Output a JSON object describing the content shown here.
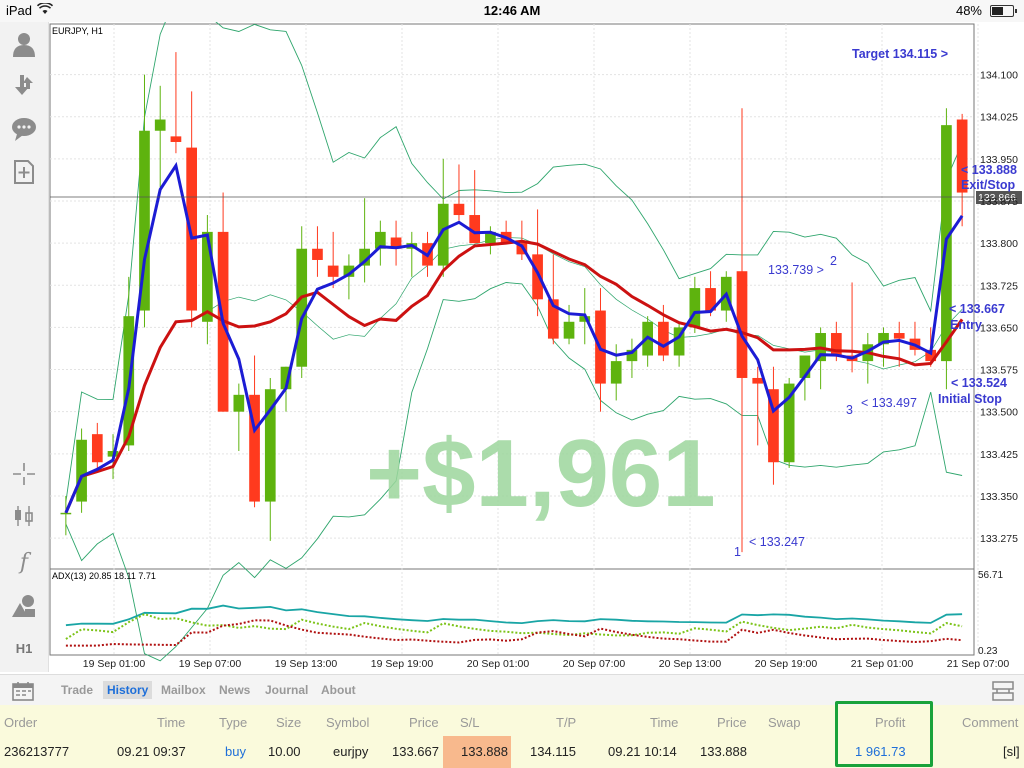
{
  "status_bar": {
    "device": "iPad",
    "time": "12:46 AM",
    "battery": "48%"
  },
  "toolbar": {
    "icons": [
      "account-icon",
      "trade-arrows-icon",
      "chat-icon",
      "new-order-icon",
      "crosshair-icon",
      "candlestick-icon",
      "function-icon",
      "objects-icon"
    ],
    "timeframe": "H1"
  },
  "chart": {
    "symbol_label": "EURJPY, H1",
    "current_price": "133.866",
    "overlay_text": "+$1,961",
    "annotations": {
      "target": "Target 134.115 >",
      "exit_price": "< 133.888",
      "exit_label": "Exit/Stop",
      "entry_price": "< 133.667",
      "entry_label": "Entry",
      "initial_price": "< 133.524",
      "initial_label": "Initial Stop",
      "p1_num": "1",
      "p1_label": "< 133.247",
      "p2_num": "2",
      "p2_label": "133.739 >",
      "p3_num": "3",
      "p3_label": "< 133.497"
    },
    "indicator_label": "ADX(13) 20.85 18.11 7.71",
    "indicator_max": "56.71",
    "indicator_min": "0.23",
    "colors": {
      "bull": "#5eb30e",
      "bear": "#ff3a1e",
      "ma_fast": "#1c1cd4",
      "ma_slow": "#cc1111",
      "band": "#2ea56c",
      "annotation": "#3a3ad0",
      "overlay": "#9cd69c"
    }
  },
  "chart_data": {
    "type": "candlestick",
    "title": "EURJPY, H1",
    "y_ticks": [
      "134.100",
      "134.025",
      "133.950",
      "133.875",
      "133.800",
      "133.725",
      "133.650",
      "133.575",
      "133.500",
      "133.425",
      "133.350",
      "133.275"
    ],
    "x_ticks": [
      "19 Sep 01:00",
      "19 Sep 07:00",
      "19 Sep 13:00",
      "19 Sep 19:00",
      "20 Sep 01:00",
      "20 Sep 07:00",
      "20 Sep 13:00",
      "20 Sep 19:00",
      "21 Sep 01:00",
      "21 Sep 07:00"
    ],
    "ylim": [
      133.22,
      134.19
    ],
    "candles": [
      {
        "o": 133.32,
        "h": 133.35,
        "l": 133.28,
        "c": 133.32
      },
      {
        "o": 133.34,
        "h": 133.47,
        "l": 133.32,
        "c": 133.45
      },
      {
        "o": 133.46,
        "h": 133.48,
        "l": 133.4,
        "c": 133.41
      },
      {
        "o": 133.42,
        "h": 133.46,
        "l": 133.38,
        "c": 133.43
      },
      {
        "o": 133.44,
        "h": 133.74,
        "l": 133.43,
        "c": 133.67
      },
      {
        "o": 133.68,
        "h": 134.1,
        "l": 133.65,
        "c": 134.0
      },
      {
        "o": 134.0,
        "h": 134.08,
        "l": 133.9,
        "c": 134.02
      },
      {
        "o": 133.99,
        "h": 134.14,
        "l": 133.96,
        "c": 133.98
      },
      {
        "o": 133.97,
        "h": 134.07,
        "l": 133.65,
        "c": 133.68
      },
      {
        "o": 133.66,
        "h": 133.85,
        "l": 133.62,
        "c": 133.82
      },
      {
        "o": 133.82,
        "h": 133.89,
        "l": 133.5,
        "c": 133.5
      },
      {
        "o": 133.5,
        "h": 133.55,
        "l": 133.43,
        "c": 133.53
      },
      {
        "o": 133.53,
        "h": 133.6,
        "l": 133.33,
        "c": 133.34
      },
      {
        "o": 133.34,
        "h": 133.56,
        "l": 133.27,
        "c": 133.54
      },
      {
        "o": 133.54,
        "h": 133.58,
        "l": 133.5,
        "c": 133.58
      },
      {
        "o": 133.58,
        "h": 133.83,
        "l": 133.56,
        "c": 133.79
      },
      {
        "o": 133.79,
        "h": 133.83,
        "l": 133.74,
        "c": 133.77
      },
      {
        "o": 133.76,
        "h": 133.82,
        "l": 133.72,
        "c": 133.74
      },
      {
        "o": 133.74,
        "h": 133.78,
        "l": 133.7,
        "c": 133.76
      },
      {
        "o": 133.76,
        "h": 133.88,
        "l": 133.73,
        "c": 133.79
      },
      {
        "o": 133.79,
        "h": 133.84,
        "l": 133.76,
        "c": 133.82
      },
      {
        "o": 133.81,
        "h": 133.84,
        "l": 133.76,
        "c": 133.79
      },
      {
        "o": 133.79,
        "h": 133.82,
        "l": 133.74,
        "c": 133.8
      },
      {
        "o": 133.8,
        "h": 133.82,
        "l": 133.74,
        "c": 133.76
      },
      {
        "o": 133.76,
        "h": 133.95,
        "l": 133.74,
        "c": 133.87
      },
      {
        "o": 133.87,
        "h": 133.94,
        "l": 133.84,
        "c": 133.85
      },
      {
        "o": 133.85,
        "h": 133.93,
        "l": 133.8,
        "c": 133.8
      },
      {
        "o": 133.8,
        "h": 133.83,
        "l": 133.78,
        "c": 133.82
      },
      {
        "o": 133.82,
        "h": 133.84,
        "l": 133.8,
        "c": 133.8
      },
      {
        "o": 133.8,
        "h": 133.84,
        "l": 133.77,
        "c": 133.78
      },
      {
        "o": 133.78,
        "h": 133.86,
        "l": 133.67,
        "c": 133.7
      },
      {
        "o": 133.7,
        "h": 133.78,
        "l": 133.62,
        "c": 133.63
      },
      {
        "o": 133.63,
        "h": 133.69,
        "l": 133.62,
        "c": 133.66
      },
      {
        "o": 133.66,
        "h": 133.72,
        "l": 133.62,
        "c": 133.67
      },
      {
        "o": 133.68,
        "h": 133.72,
        "l": 133.5,
        "c": 133.55
      },
      {
        "o": 133.55,
        "h": 133.62,
        "l": 133.52,
        "c": 133.59
      },
      {
        "o": 133.59,
        "h": 133.63,
        "l": 133.56,
        "c": 133.61
      },
      {
        "o": 133.6,
        "h": 133.67,
        "l": 133.58,
        "c": 133.66
      },
      {
        "o": 133.66,
        "h": 133.69,
        "l": 133.59,
        "c": 133.6
      },
      {
        "o": 133.6,
        "h": 133.66,
        "l": 133.58,
        "c": 133.65
      },
      {
        "o": 133.65,
        "h": 133.74,
        "l": 133.64,
        "c": 133.72
      },
      {
        "o": 133.72,
        "h": 133.75,
        "l": 133.67,
        "c": 133.68
      },
      {
        "o": 133.68,
        "h": 133.75,
        "l": 133.66,
        "c": 133.74
      },
      {
        "o": 133.75,
        "h": 134.04,
        "l": 133.25,
        "c": 133.56
      },
      {
        "o": 133.56,
        "h": 133.58,
        "l": 133.44,
        "c": 133.55
      },
      {
        "o": 133.54,
        "h": 133.58,
        "l": 133.37,
        "c": 133.41
      },
      {
        "o": 133.41,
        "h": 133.56,
        "l": 133.4,
        "c": 133.55
      },
      {
        "o": 133.56,
        "h": 133.6,
        "l": 133.52,
        "c": 133.6
      },
      {
        "o": 133.59,
        "h": 133.65,
        "l": 133.54,
        "c": 133.64
      },
      {
        "o": 133.64,
        "h": 133.66,
        "l": 133.59,
        "c": 133.6
      },
      {
        "o": 133.6,
        "h": 133.73,
        "l": 133.57,
        "c": 133.59
      },
      {
        "o": 133.59,
        "h": 133.64,
        "l": 133.55,
        "c": 133.62
      },
      {
        "o": 133.62,
        "h": 133.65,
        "l": 133.58,
        "c": 133.64
      },
      {
        "o": 133.64,
        "h": 133.66,
        "l": 133.58,
        "c": 133.63
      },
      {
        "o": 133.63,
        "h": 133.66,
        "l": 133.6,
        "c": 133.61
      },
      {
        "o": 133.61,
        "h": 133.65,
        "l": 133.58,
        "c": 133.59
      },
      {
        "o": 133.59,
        "h": 134.04,
        "l": 133.54,
        "c": 134.01
      },
      {
        "o": 134.02,
        "h": 134.03,
        "l": 133.83,
        "c": 133.89
      }
    ]
  },
  "tabs": [
    "Trade",
    "History",
    "Mailbox",
    "News",
    "Journal",
    "About"
  ],
  "active_tab": "History",
  "history": {
    "columns": [
      "Order",
      "Time",
      "Type",
      "Size",
      "Symbol",
      "Price",
      "S/L",
      "T/P",
      "Time",
      "Price",
      "Swap",
      "Profit",
      "Comment"
    ],
    "row": {
      "order": "236213777",
      "open_time": "09.21 09:37",
      "type": "buy",
      "size": "10.00",
      "symbol": "eurjpy",
      "open_price": "133.667",
      "sl": "133.888",
      "tp": "134.115",
      "close_time": "09.21 10:14",
      "close_price": "133.888",
      "swap": "",
      "profit": "1 961.73",
      "comment": "[sl]"
    }
  }
}
